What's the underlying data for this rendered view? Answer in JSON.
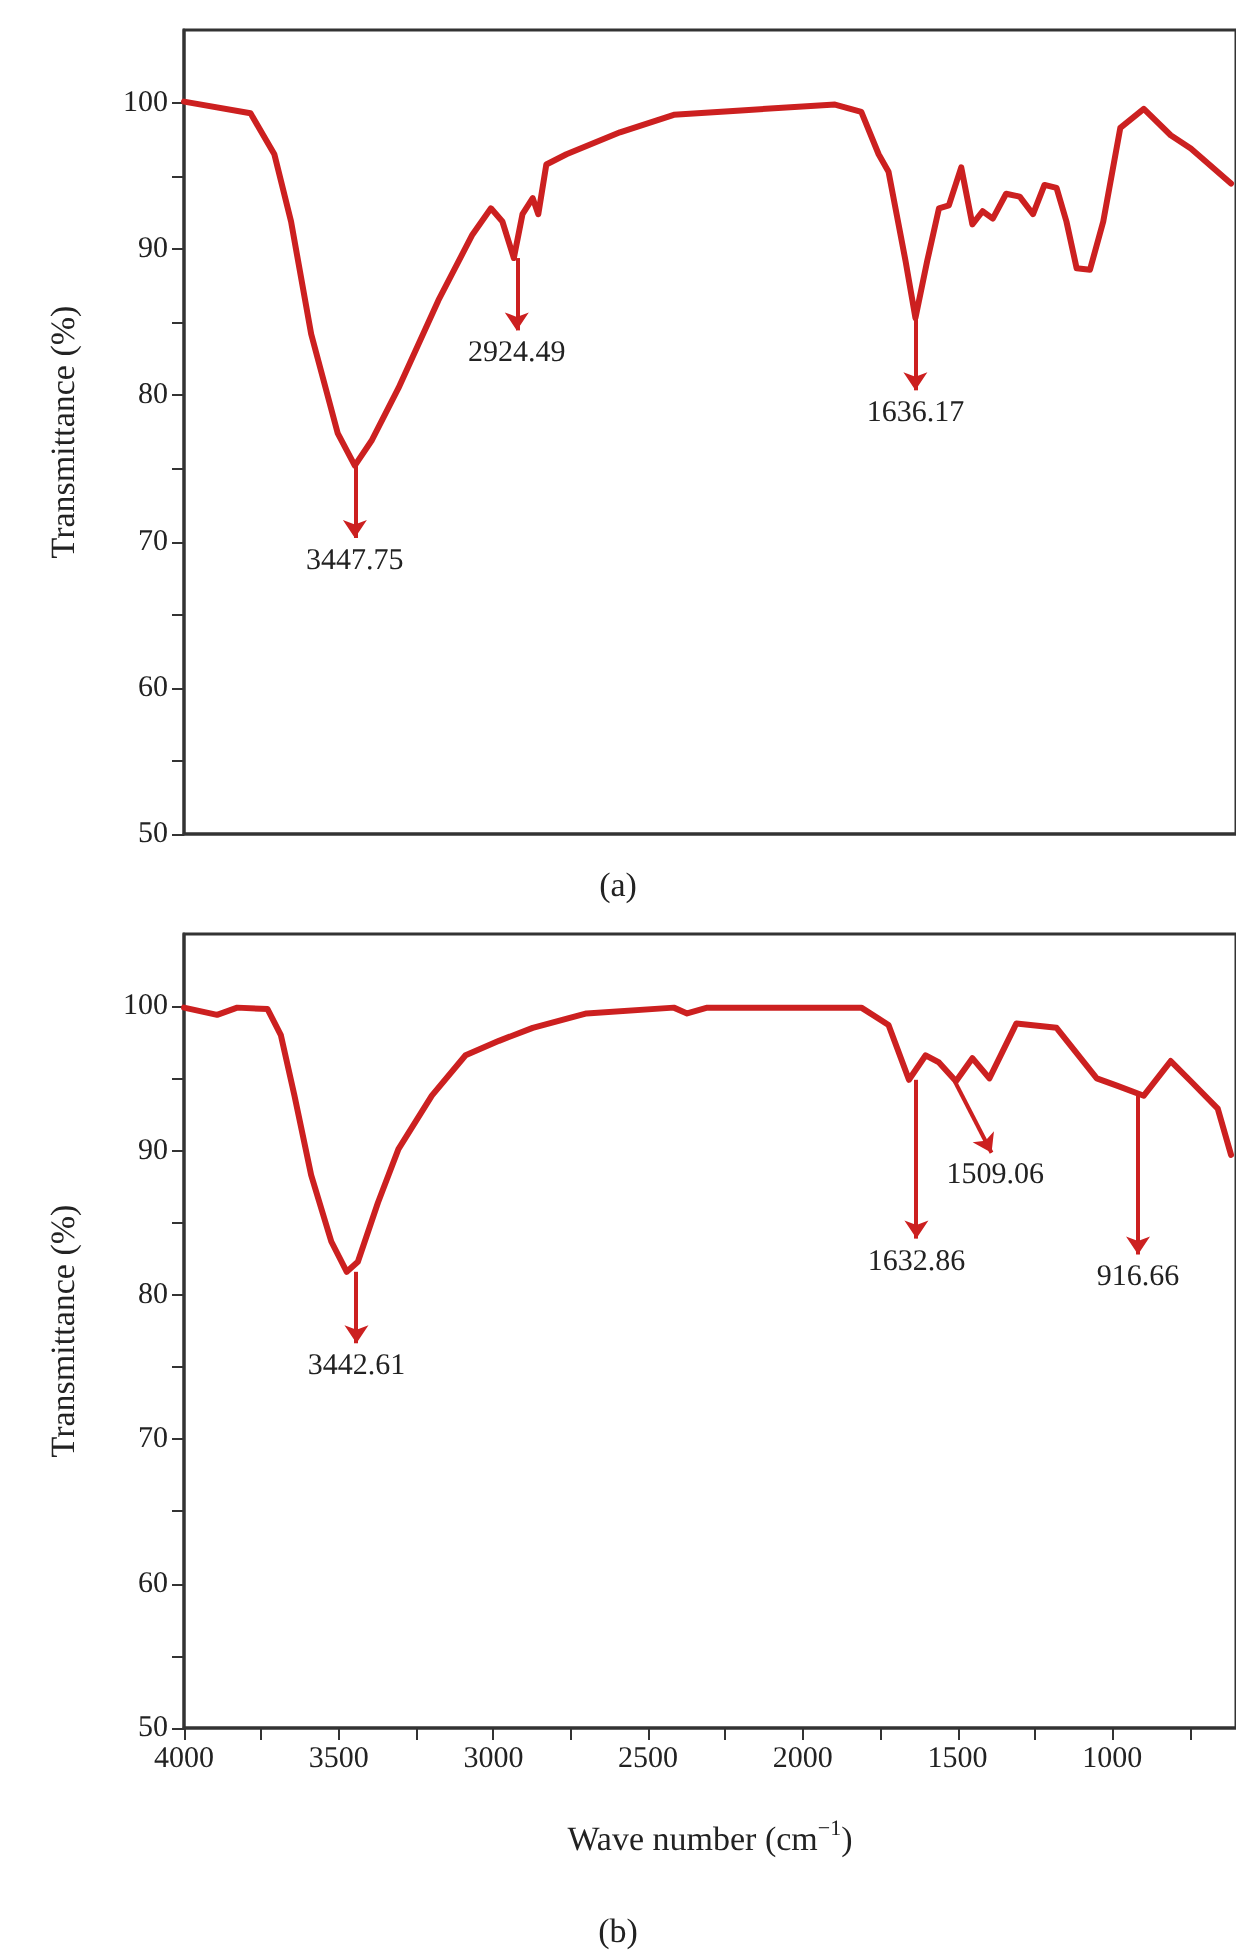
{
  "chart_data": [
    {
      "type": "line",
      "title": "(a)",
      "ylabel": "Transmittance (%)",
      "xlim": [
        4000,
        600
      ],
      "ylim": [
        50,
        105
      ],
      "tick_labels": "y",
      "marker": "none",
      "grid": false,
      "yticks": [
        50,
        {
          "value": 55,
          "label": null
        },
        60,
        {
          "value": 65,
          "label": null
        },
        70,
        {
          "value": 75,
          "label": null
        },
        80,
        {
          "value": 85,
          "label": null
        },
        90,
        {
          "value": 95,
          "label": null
        },
        100
      ],
      "series": [
        {
          "color": "#cc2020",
          "x": [
            4000,
            3785,
            3708,
            3654,
            3589,
            3503,
            3448,
            3394,
            3307,
            3178,
            3068,
            3008,
            2971,
            2934,
            2906,
            2873,
            2855,
            2829,
            2764,
            2591,
            2417,
            2200,
            1896,
            1811,
            1755,
            1723,
            1668,
            1636,
            1598,
            1560,
            1528,
            1488,
            1452,
            1419,
            1386,
            1343,
            1299,
            1256,
            1219,
            1180,
            1148,
            1115,
            1072,
            1029,
            974,
            898,
            811,
            746,
            616
          ],
          "values": [
            100.1,
            99.3,
            96.5,
            91.9,
            84.2,
            77.4,
            75.2,
            76.9,
            80.5,
            86.5,
            91.0,
            92.8,
            91.9,
            89.4,
            92.4,
            93.5,
            92.4,
            95.8,
            96.5,
            98.0,
            99.2,
            99.5,
            99.9,
            99.4,
            96.5,
            95.3,
            89.2,
            85.3,
            89.2,
            92.8,
            93.0,
            95.6,
            91.7,
            92.6,
            92.1,
            93.8,
            93.6,
            92.4,
            94.4,
            94.2,
            91.9,
            88.7,
            88.6,
            91.9,
            98.3,
            99.6,
            97.8,
            96.9,
            94.5
          ]
        }
      ],
      "annotations": [
        {
          "text": "3447.75",
          "x": 3447.75,
          "y": 75.2
        },
        {
          "text": "2924.49",
          "x": 2924.49,
          "y": 89.4
        },
        {
          "text": "1636.17",
          "x": 1636.17,
          "y": 85.3
        }
      ]
    },
    {
      "type": "line",
      "title": "(b)",
      "ylabel": "Transmittance (%)",
      "xlabel": "Wave number (cm$^{−1}$)",
      "xlim": [
        4000,
        600
      ],
      "ylim": [
        50,
        105
      ],
      "marker": "none",
      "grid": false,
      "xticks": [
        4000,
        {
          "value": 3750,
          "label": null
        },
        3500,
        {
          "value": 3250,
          "label": null
        },
        3000,
        {
          "value": 2750,
          "label": null
        },
        2500,
        {
          "value": 2250,
          "label": null
        },
        2000,
        {
          "value": 1750,
          "label": null
        },
        1500,
        {
          "value": 1250,
          "label": null
        },
        1000,
        {
          "value": 750,
          "label": null
        }
      ],
      "yticks": [
        50,
        {
          "value": 55,
          "label": null
        },
        60,
        {
          "value": 65,
          "label": null
        },
        70,
        {
          "value": 75,
          "label": null
        },
        80,
        {
          "value": 85,
          "label": null
        },
        90,
        {
          "value": 95,
          "label": null
        },
        100
      ],
      "series": [
        {
          "color": "#cc2020",
          "x": [
            4000,
            3893,
            3828,
            3730,
            3687,
            3643,
            3589,
            3524,
            3474,
            3438,
            3373,
            3307,
            3199,
            3090,
            2982,
            2873,
            2699,
            2417,
            2374,
            2309,
            1811,
            1723,
            1657,
            1603,
            1560,
            1505,
            1452,
            1397,
            1310,
            1180,
            1050,
            985,
            898,
            811,
            746,
            659,
            616
          ],
          "values": [
            99.9,
            99.4,
            99.9,
            99.8,
            98.0,
            93.8,
            88.3,
            83.7,
            81.6,
            82.3,
            86.4,
            90.1,
            93.8,
            96.6,
            97.6,
            98.5,
            99.5,
            99.9,
            99.5,
            99.9,
            99.9,
            98.7,
            94.9,
            96.6,
            96.1,
            94.8,
            96.4,
            95.0,
            98.8,
            98.5,
            95.0,
            94.5,
            93.8,
            96.2,
            94.8,
            92.9,
            89.7
          ]
        }
      ],
      "annotations": [
        {
          "text": "3442.61",
          "x": 3442.61,
          "y": 81.6
        },
        {
          "text": "1632.86",
          "x": 1632.86,
          "y": 94.9
        },
        {
          "text": "1509.06",
          "x": 1509.06,
          "y": 94.8
        },
        {
          "text": "916.66",
          "x": 916.66,
          "y": 93.8
        }
      ]
    }
  ]
}
